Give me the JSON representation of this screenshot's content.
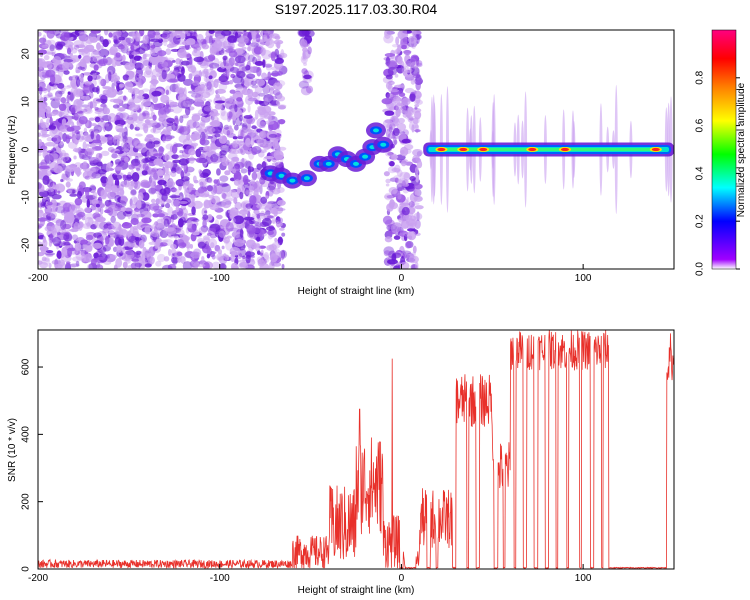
{
  "title": "S197.2025.117.03.30.R04",
  "colors": {
    "snr_line": "#e8302a",
    "blob_light": "#c9a0f0",
    "blob_mid": "#9a55e6",
    "blob_dark": "#6a1bd6"
  },
  "chart_data": [
    {
      "type": "heatmap",
      "name": "spectrogram",
      "xlabel": "Height of straight line (km)",
      "ylabel": "Frequency (Hz)",
      "xlim": [
        -200,
        150
      ],
      "ylim": [
        -25,
        25
      ],
      "xticks": [
        -200,
        -100,
        0,
        100
      ],
      "yticks": [
        -20,
        -10,
        0,
        10,
        20
      ],
      "grid": false,
      "colorbar": {
        "label": "Normalized spectral amplitude",
        "range": [
          0,
          1
        ],
        "ticks": [
          0.0,
          0.2,
          0.4,
          0.6,
          0.8
        ],
        "tick_labels": [
          "0.0",
          "0.2",
          "0.4",
          "0.6",
          "0.8"
        ],
        "colormap": [
          "#ffffff",
          "#a000ff",
          "#0000ff",
          "#00ffff",
          "#00ff00",
          "#ffff00",
          "#ff8000",
          "#ff0000",
          "#ff0080"
        ]
      },
      "regions": [
        {
          "description": "noise",
          "x": [
            -200,
            -65
          ],
          "freq": [
            -25,
            25
          ],
          "amplitude": 0.1
        },
        {
          "description": "noise",
          "x": [
            -8,
            10
          ],
          "freq": [
            -25,
            25
          ],
          "amplitude": 0.1
        },
        {
          "description": "noise",
          "x": [
            -55,
            -50
          ],
          "freq": [
            12,
            25
          ],
          "amplitude": 0.1
        },
        {
          "description": "signal",
          "x": [
            15,
            150
          ],
          "freq": [
            -2,
            2
          ],
          "amplitude": 0.6
        }
      ],
      "ridge": [
        {
          "x": -72,
          "y": -5
        },
        {
          "x": -66,
          "y": -5.5
        },
        {
          "x": -60,
          "y": -6.5
        },
        {
          "x": -52,
          "y": -6
        },
        {
          "x": -45,
          "y": -3
        },
        {
          "x": -40,
          "y": -3
        },
        {
          "x": -35,
          "y": -1
        },
        {
          "x": -30,
          "y": -2
        },
        {
          "x": -25,
          "y": -3
        },
        {
          "x": -20,
          "y": -1.5
        },
        {
          "x": -16,
          "y": 0.5
        },
        {
          "x": -14,
          "y": 4
        },
        {
          "x": -10,
          "y": 1
        }
      ],
      "band": {
        "x_start": 12,
        "x_end": 150,
        "y": 0,
        "hotspots": [
          22,
          34,
          45,
          72,
          90,
          140
        ]
      }
    },
    {
      "type": "line",
      "name": "snr",
      "xlabel": "Height of straight line (km)",
      "ylabel": "SNR (10 * v/v)",
      "xlim": [
        -200,
        150
      ],
      "ylim": [
        0,
        710
      ],
      "xticks": [
        -200,
        -100,
        0,
        100
      ],
      "yticks": [
        0,
        200,
        400,
        600
      ],
      "grid": false,
      "series": [
        {
          "segments": [
            {
              "x": [
                -200,
                -60
              ],
              "level": 15,
              "noise": 12
            },
            {
              "x": [
                -60,
                -40
              ],
              "level": 50,
              "noise": 50
            },
            {
              "x": [
                -40,
                -25
              ],
              "level": 130,
              "noise": 120
            },
            {
              "x": [
                -25,
                -10
              ],
              "level": 250,
              "noise": 150
            },
            {
              "x": [
                -10,
                0
              ],
              "level": 80,
              "noise": 80
            },
            {
              "x": [
                0,
                10
              ],
              "level": 30,
              "noise": 30
            },
            {
              "x": [
                10,
                30
              ],
              "level": 150,
              "noise": 90
            },
            {
              "x": [
                30,
                50
              ],
              "level": 500,
              "noise": 80
            },
            {
              "x": [
                50,
                60
              ],
              "level": 300,
              "noise": 80
            },
            {
              "x": [
                60,
                115
              ],
              "level": 650,
              "noise": 60
            },
            {
              "x": [
                115,
                150
              ],
              "level": 610,
              "noise": 50
            }
          ],
          "spikes": [
            {
              "x": -23,
              "y": 475
            },
            {
              "x": -5,
              "y": 625
            },
            {
              "x": 148,
              "y": 700
            }
          ],
          "dropouts": [
            [
              -1,
              1
            ],
            [
              2,
              8
            ],
            [
              14,
              16
            ],
            [
              19,
              20
            ],
            [
              28,
              30
            ],
            [
              36,
              37
            ],
            [
              41,
              43
            ],
            [
              51,
              53
            ],
            [
              56,
              57
            ],
            [
              62,
              63
            ],
            [
              67,
              69
            ],
            [
              73,
              75
            ],
            [
              79,
              81
            ],
            [
              85,
              86
            ],
            [
              91,
              92
            ],
            [
              98,
              99
            ],
            [
              104,
              106
            ],
            [
              110,
              111
            ],
            [
              114,
              146
            ]
          ]
        }
      ]
    }
  ]
}
